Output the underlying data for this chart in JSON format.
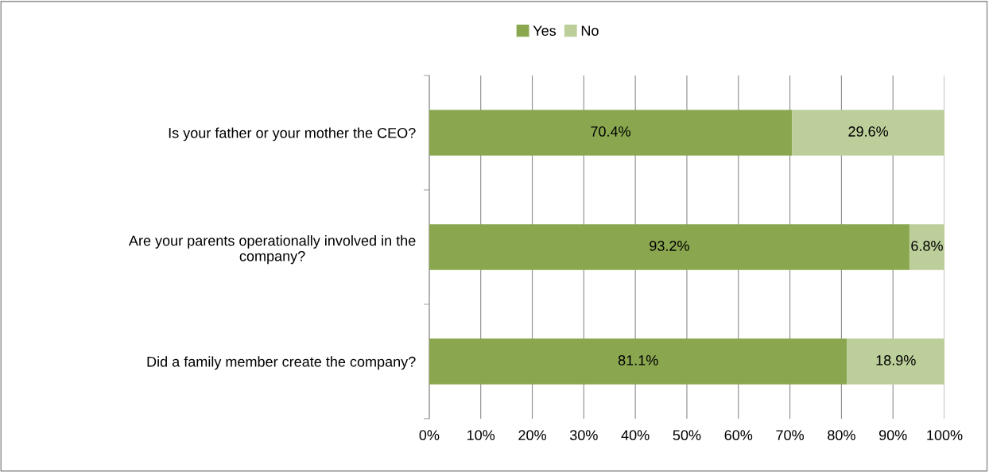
{
  "chart_data": {
    "type": "bar",
    "orientation": "horizontal",
    "stacked": true,
    "categories": [
      "Is your father or your mother the CEO?",
      "Are your parents operationally involved in the\ncompany?",
      "Did a family member create the company?"
    ],
    "series": [
      {
        "name": "Yes",
        "color": "#8aa74f",
        "values": [
          70.4,
          93.2,
          81.1
        ],
        "value_labels": [
          "70.4%",
          "93.2%",
          "81.1%"
        ]
      },
      {
        "name": "No",
        "color": "#bccf9a",
        "values": [
          29.6,
          6.8,
          18.9
        ],
        "value_labels": [
          "29.6%",
          "6.8%",
          "18.9%"
        ]
      }
    ],
    "xlim": [
      0,
      100
    ],
    "xticks": [
      {
        "value": 0,
        "label": "0%"
      },
      {
        "value": 10,
        "label": "10%"
      },
      {
        "value": 20,
        "label": "20%"
      },
      {
        "value": 30,
        "label": "30%"
      },
      {
        "value": 40,
        "label": "40%"
      },
      {
        "value": 50,
        "label": "50%"
      },
      {
        "value": 60,
        "label": "60%"
      },
      {
        "value": 70,
        "label": "70%"
      },
      {
        "value": 80,
        "label": "80%"
      },
      {
        "value": 90,
        "label": "90%"
      },
      {
        "value": 100,
        "label": "100%"
      }
    ],
    "grid": "x",
    "legend": "top"
  }
}
